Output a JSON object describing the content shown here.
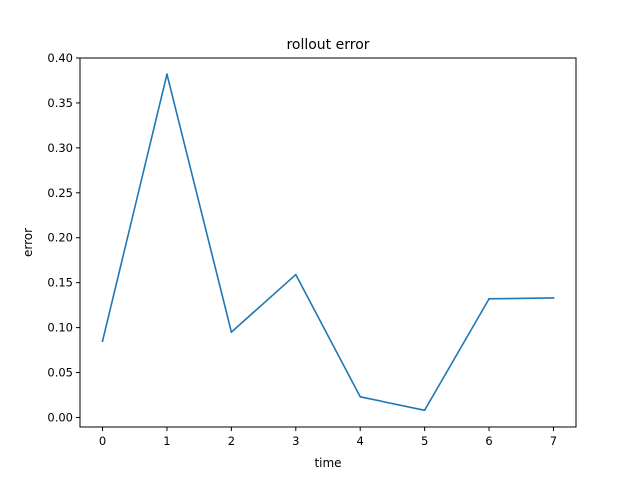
{
  "chart_data": {
    "type": "line",
    "title": "rollout error",
    "xlabel": "time",
    "ylabel": "error",
    "x": [
      0,
      1,
      2,
      3,
      4,
      5,
      6,
      7
    ],
    "xticks": [
      0,
      1,
      2,
      3,
      4,
      5,
      6,
      7
    ],
    "xlim": [
      -0.35,
      7.35
    ],
    "ylim": [
      -0.0106,
      0.4
    ],
    "yticks": [
      0.0,
      0.05,
      0.1,
      0.15,
      0.2,
      0.25,
      0.3,
      0.35,
      0.4
    ],
    "ytick_labels": [
      "0.00",
      "0.05",
      "0.10",
      "0.15",
      "0.20",
      "0.25",
      "0.30",
      "0.35",
      "0.40"
    ],
    "series": [
      {
        "values": [
          0.085,
          0.382,
          0.095,
          0.159,
          0.023,
          0.008,
          0.132,
          0.133
        ],
        "color": "#1f77b4"
      }
    ],
    "grid": false,
    "legend": "none"
  }
}
